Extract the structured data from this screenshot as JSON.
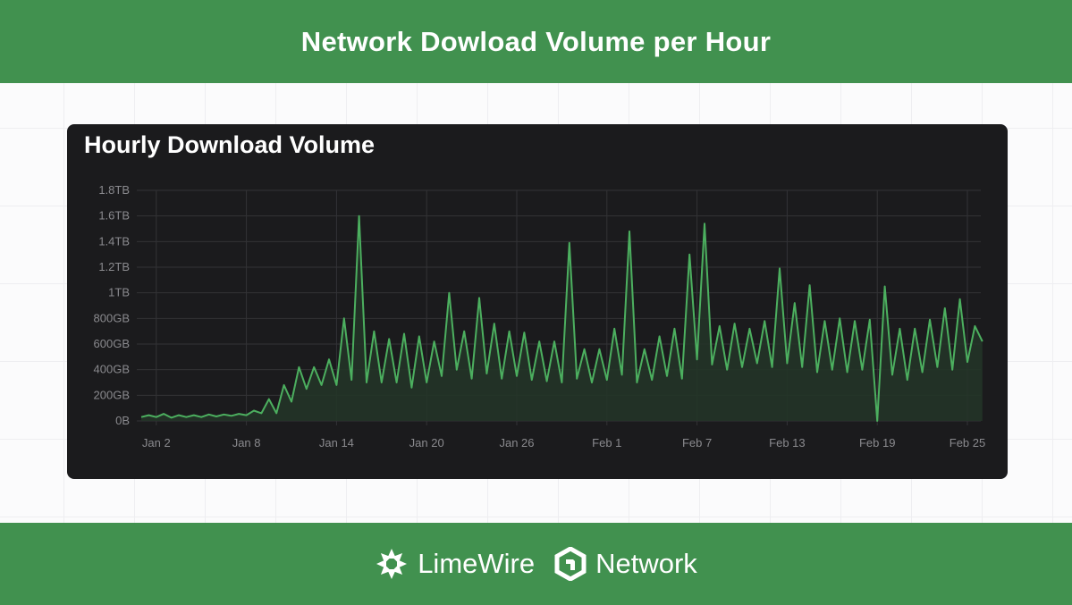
{
  "header": {
    "title": "Network Dowload Volume per Hour"
  },
  "footer": {
    "brand1": "LimeWire",
    "brand2": "Network"
  },
  "colors": {
    "brand_green": "#41914f",
    "card_bg": "#1b1b1d",
    "line": "#4caf5f",
    "area": "#233428"
  },
  "icons": {
    "brand1": "lime-slice-icon",
    "brand2": "hexagon-network-icon"
  },
  "chart_data": {
    "type": "area",
    "title": "Hourly Download Volume",
    "xlabel": "",
    "ylabel": "",
    "unit": "GB",
    "ylim": [
      0,
      1800
    ],
    "yticks": [
      {
        "v": 0,
        "label": "0B"
      },
      {
        "v": 200,
        "label": "200GB"
      },
      {
        "v": 400,
        "label": "400GB"
      },
      {
        "v": 600,
        "label": "600GB"
      },
      {
        "v": 800,
        "label": "800GB"
      },
      {
        "v": 1000,
        "label": "1TB"
      },
      {
        "v": 1200,
        "label": "1.2TB"
      },
      {
        "v": 1400,
        "label": "1.4TB"
      },
      {
        "v": 1600,
        "label": "1.6TB"
      },
      {
        "v": 1800,
        "label": "1.8TB"
      }
    ],
    "xticks": [
      {
        "day": 1,
        "label": "Jan 2"
      },
      {
        "day": 7,
        "label": "Jan 8"
      },
      {
        "day": 13,
        "label": "Jan 14"
      },
      {
        "day": 19,
        "label": "Jan 20"
      },
      {
        "day": 25,
        "label": "Jan 26"
      },
      {
        "day": 31,
        "label": "Feb 1"
      },
      {
        "day": 37,
        "label": "Feb 7"
      },
      {
        "day": 43,
        "label": "Feb 13"
      },
      {
        "day": 49,
        "label": "Feb 19"
      },
      {
        "day": 55,
        "label": "Feb 25"
      }
    ],
    "x_start": "Jan 1",
    "x_step": "12h",
    "grid": true,
    "legend": "none",
    "values": [
      30,
      45,
      30,
      55,
      25,
      45,
      30,
      45,
      30,
      50,
      35,
      50,
      40,
      55,
      45,
      80,
      60,
      170,
      60,
      280,
      150,
      420,
      250,
      420,
      280,
      480,
      280,
      800,
      320,
      1600,
      300,
      700,
      300,
      640,
      300,
      680,
      260,
      660,
      300,
      620,
      350,
      1000,
      400,
      700,
      330,
      960,
      370,
      760,
      330,
      700,
      350,
      690,
      320,
      620,
      310,
      620,
      300,
      1390,
      330,
      560,
      300,
      560,
      320,
      720,
      360,
      1480,
      300,
      560,
      320,
      660,
      350,
      720,
      330,
      1300,
      480,
      1540,
      440,
      740,
      400,
      760,
      420,
      720,
      450,
      780,
      420,
      1190,
      450,
      920,
      420,
      1060,
      380,
      780,
      400,
      800,
      380,
      780,
      400,
      790,
      0,
      1050,
      360,
      720,
      320,
      720,
      380,
      790,
      420,
      880,
      400,
      950,
      460,
      740,
      620
    ]
  }
}
